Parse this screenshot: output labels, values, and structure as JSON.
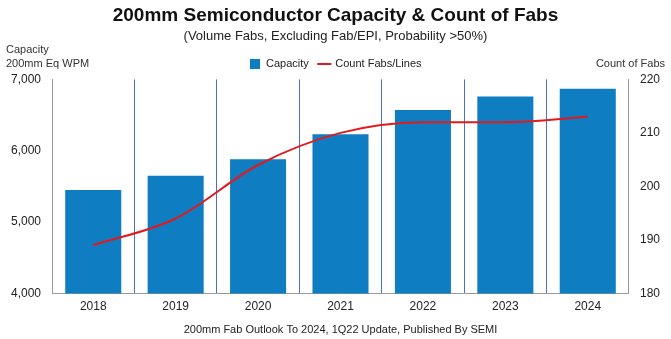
{
  "chart_data": {
    "type": "bar",
    "title": "200mm Semiconductor Capacity & Count of Fabs",
    "subtitle": "(Volume Fabs, Excluding Fab/EPI, Probability >50%)",
    "ylabel": [
      "Capacity",
      "200mm Eq WPM"
    ],
    "y2label": "Count of Fabs",
    "xlabel": "200mm Fab Outlook To 2024, 1Q22 Update, Published By SEMI",
    "categories": [
      "2018",
      "2019",
      "2020",
      "2021",
      "2022",
      "2023",
      "2024"
    ],
    "series": [
      {
        "name": "Capacity",
        "type": "bar",
        "color": "#0f7dc2",
        "values": [
          5450,
          5650,
          5880,
          6230,
          6570,
          6760,
          6870
        ]
      },
      {
        "name": "Count Fabs/Lines",
        "type": "line",
        "color": "#e3191c",
        "axis": "y2",
        "line_style": "smooth",
        "values": [
          189,
          194,
          204,
          210,
          212,
          212,
          213
        ]
      }
    ],
    "ylim": [
      4000,
      7000
    ],
    "yticks": [
      {
        "value": 4000,
        "label": "4,000"
      },
      {
        "value": 5000,
        "label": "5,000"
      },
      {
        "value": 6000,
        "label": "6,000"
      },
      {
        "value": 7000,
        "label": "7,000"
      }
    ],
    "y2lim": [
      180,
      220
    ],
    "y2ticks": [
      180,
      190,
      200,
      210,
      220
    ],
    "grid": "x",
    "legend": "top"
  }
}
